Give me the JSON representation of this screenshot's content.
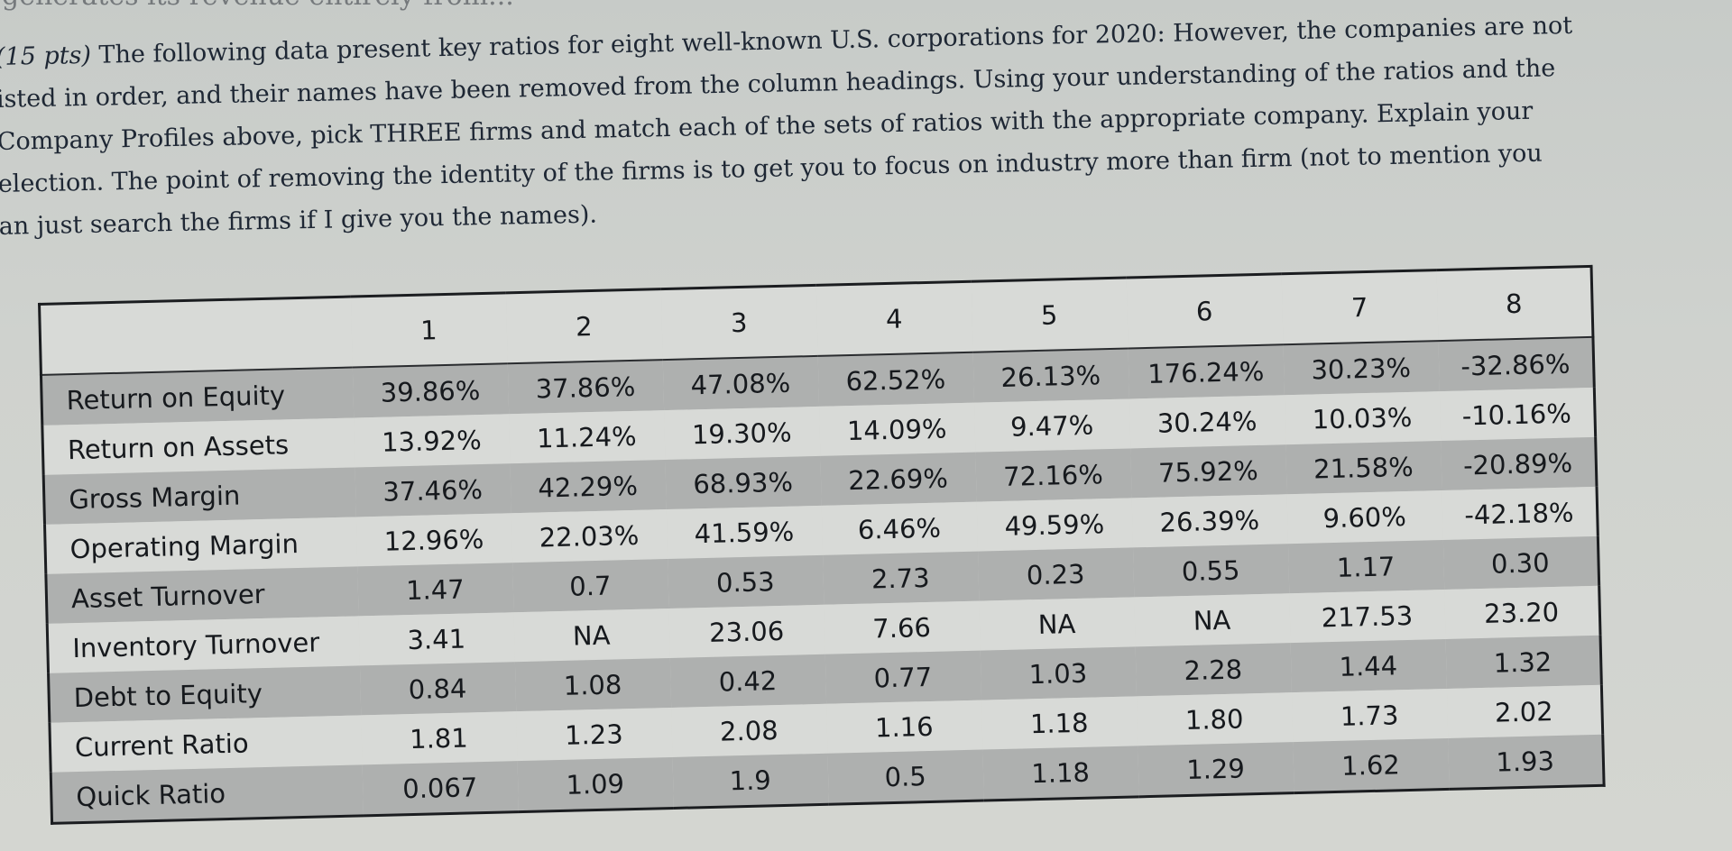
{
  "header_cut_text": "generates its revenue entirely from...",
  "question": {
    "lines": [
      "(15 pts) The following data present key ratios for eight well-known U.S. corporations for 2020: However, the companies are not",
      "isted in order, and their names have been removed from the column headings. Using your understanding of the ratios and the",
      "Company Profiles above, pick THREE firms and match each of the sets of ratios with the appropriate company. Explain your",
      "election. The point of removing the identity of the firms is to get you to focus on industry more than firm (not to mention you",
      "an just search the firms if I give you the names)."
    ]
  },
  "table": {
    "columns": [
      "1",
      "2",
      "3",
      "4",
      "5",
      "6",
      "7",
      "8"
    ],
    "rows": [
      {
        "label": "Return on Equity",
        "values": [
          "39.86%",
          "37.86%",
          "47.08%",
          "62.52%",
          "26.13%",
          "176.24%",
          "30.23%",
          "-32.86%"
        ]
      },
      {
        "label": "Return on Assets",
        "values": [
          "13.92%",
          "11.24%",
          "19.30%",
          "14.09%",
          "9.47%",
          "30.24%",
          "10.03%",
          "-10.16%"
        ]
      },
      {
        "label": "Gross Margin",
        "values": [
          "37.46%",
          "42.29%",
          "68.93%",
          "22.69%",
          "72.16%",
          "75.92%",
          "21.58%",
          "-20.89%"
        ]
      },
      {
        "label": "Operating Margin",
        "values": [
          "12.96%",
          "22.03%",
          "41.59%",
          "6.46%",
          "49.59%",
          "26.39%",
          "9.60%",
          "-42.18%"
        ]
      },
      {
        "label": "Asset Turnover",
        "values": [
          "1.47",
          "0.7",
          "0.53",
          "2.73",
          "0.23",
          "0.55",
          "1.17",
          "0.30"
        ]
      },
      {
        "label": "Inventory Turnover",
        "values": [
          "3.41",
          "NA",
          "23.06",
          "7.66",
          "NA",
          "NA",
          "217.53",
          "23.20"
        ]
      },
      {
        "label": "Debt to Equity",
        "values": [
          "0.84",
          "1.08",
          "0.42",
          "0.77",
          "1.03",
          "2.28",
          "1.44",
          "1.32"
        ]
      },
      {
        "label": "Current Ratio",
        "values": [
          "1.81",
          "1.23",
          "2.08",
          "1.16",
          "1.18",
          "1.80",
          "1.73",
          "2.02"
        ]
      },
      {
        "label": "Quick Ratio",
        "values": [
          "0.067",
          "1.09",
          "1.9",
          "0.5",
          "1.18",
          "1.29",
          "1.62",
          "1.93"
        ]
      }
    ]
  }
}
